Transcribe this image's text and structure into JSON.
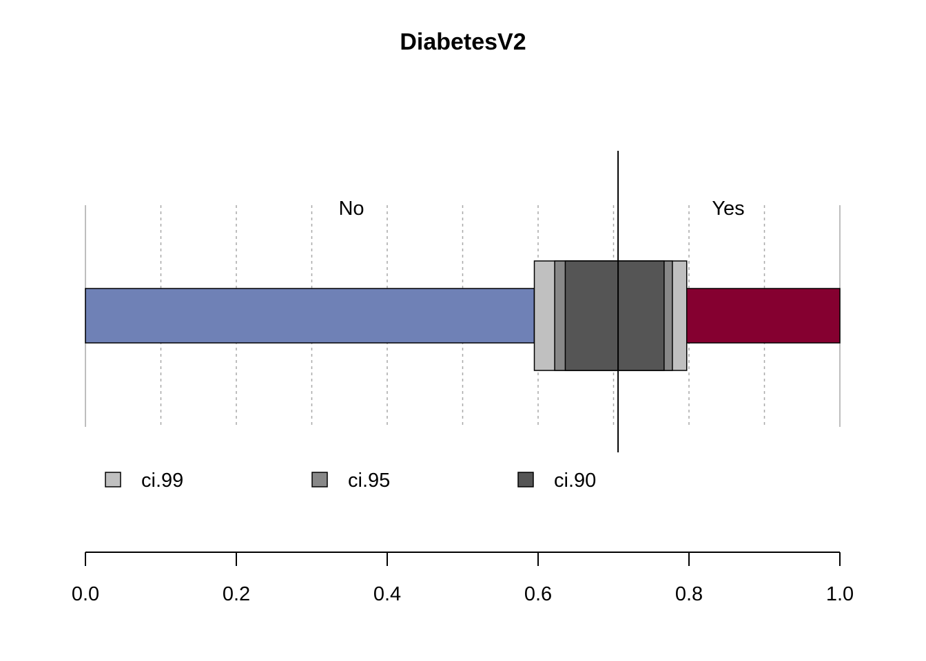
{
  "chart_data": {
    "type": "bar",
    "title": "DiabetesV2",
    "categories": [
      "No",
      "Yes"
    ],
    "proportion_split": 0.595,
    "colors": {
      "No": "#6F81B6",
      "Yes": "#850030"
    },
    "reference_line": 0.706,
    "confidence_intervals": [
      {
        "name": "ci.99",
        "lower": 0.595,
        "upper": 0.797,
        "color": "#C0C0C0"
      },
      {
        "name": "ci.95",
        "lower": 0.622,
        "upper": 0.778,
        "color": "#888888"
      },
      {
        "name": "ci.90",
        "lower": 0.636,
        "upper": 0.767,
        "color": "#555555"
      }
    ],
    "xlim": [
      0,
      1
    ],
    "xticks": [
      "0.0",
      "0.2",
      "0.4",
      "0.6",
      "0.8",
      "1.0"
    ],
    "grid": true
  }
}
